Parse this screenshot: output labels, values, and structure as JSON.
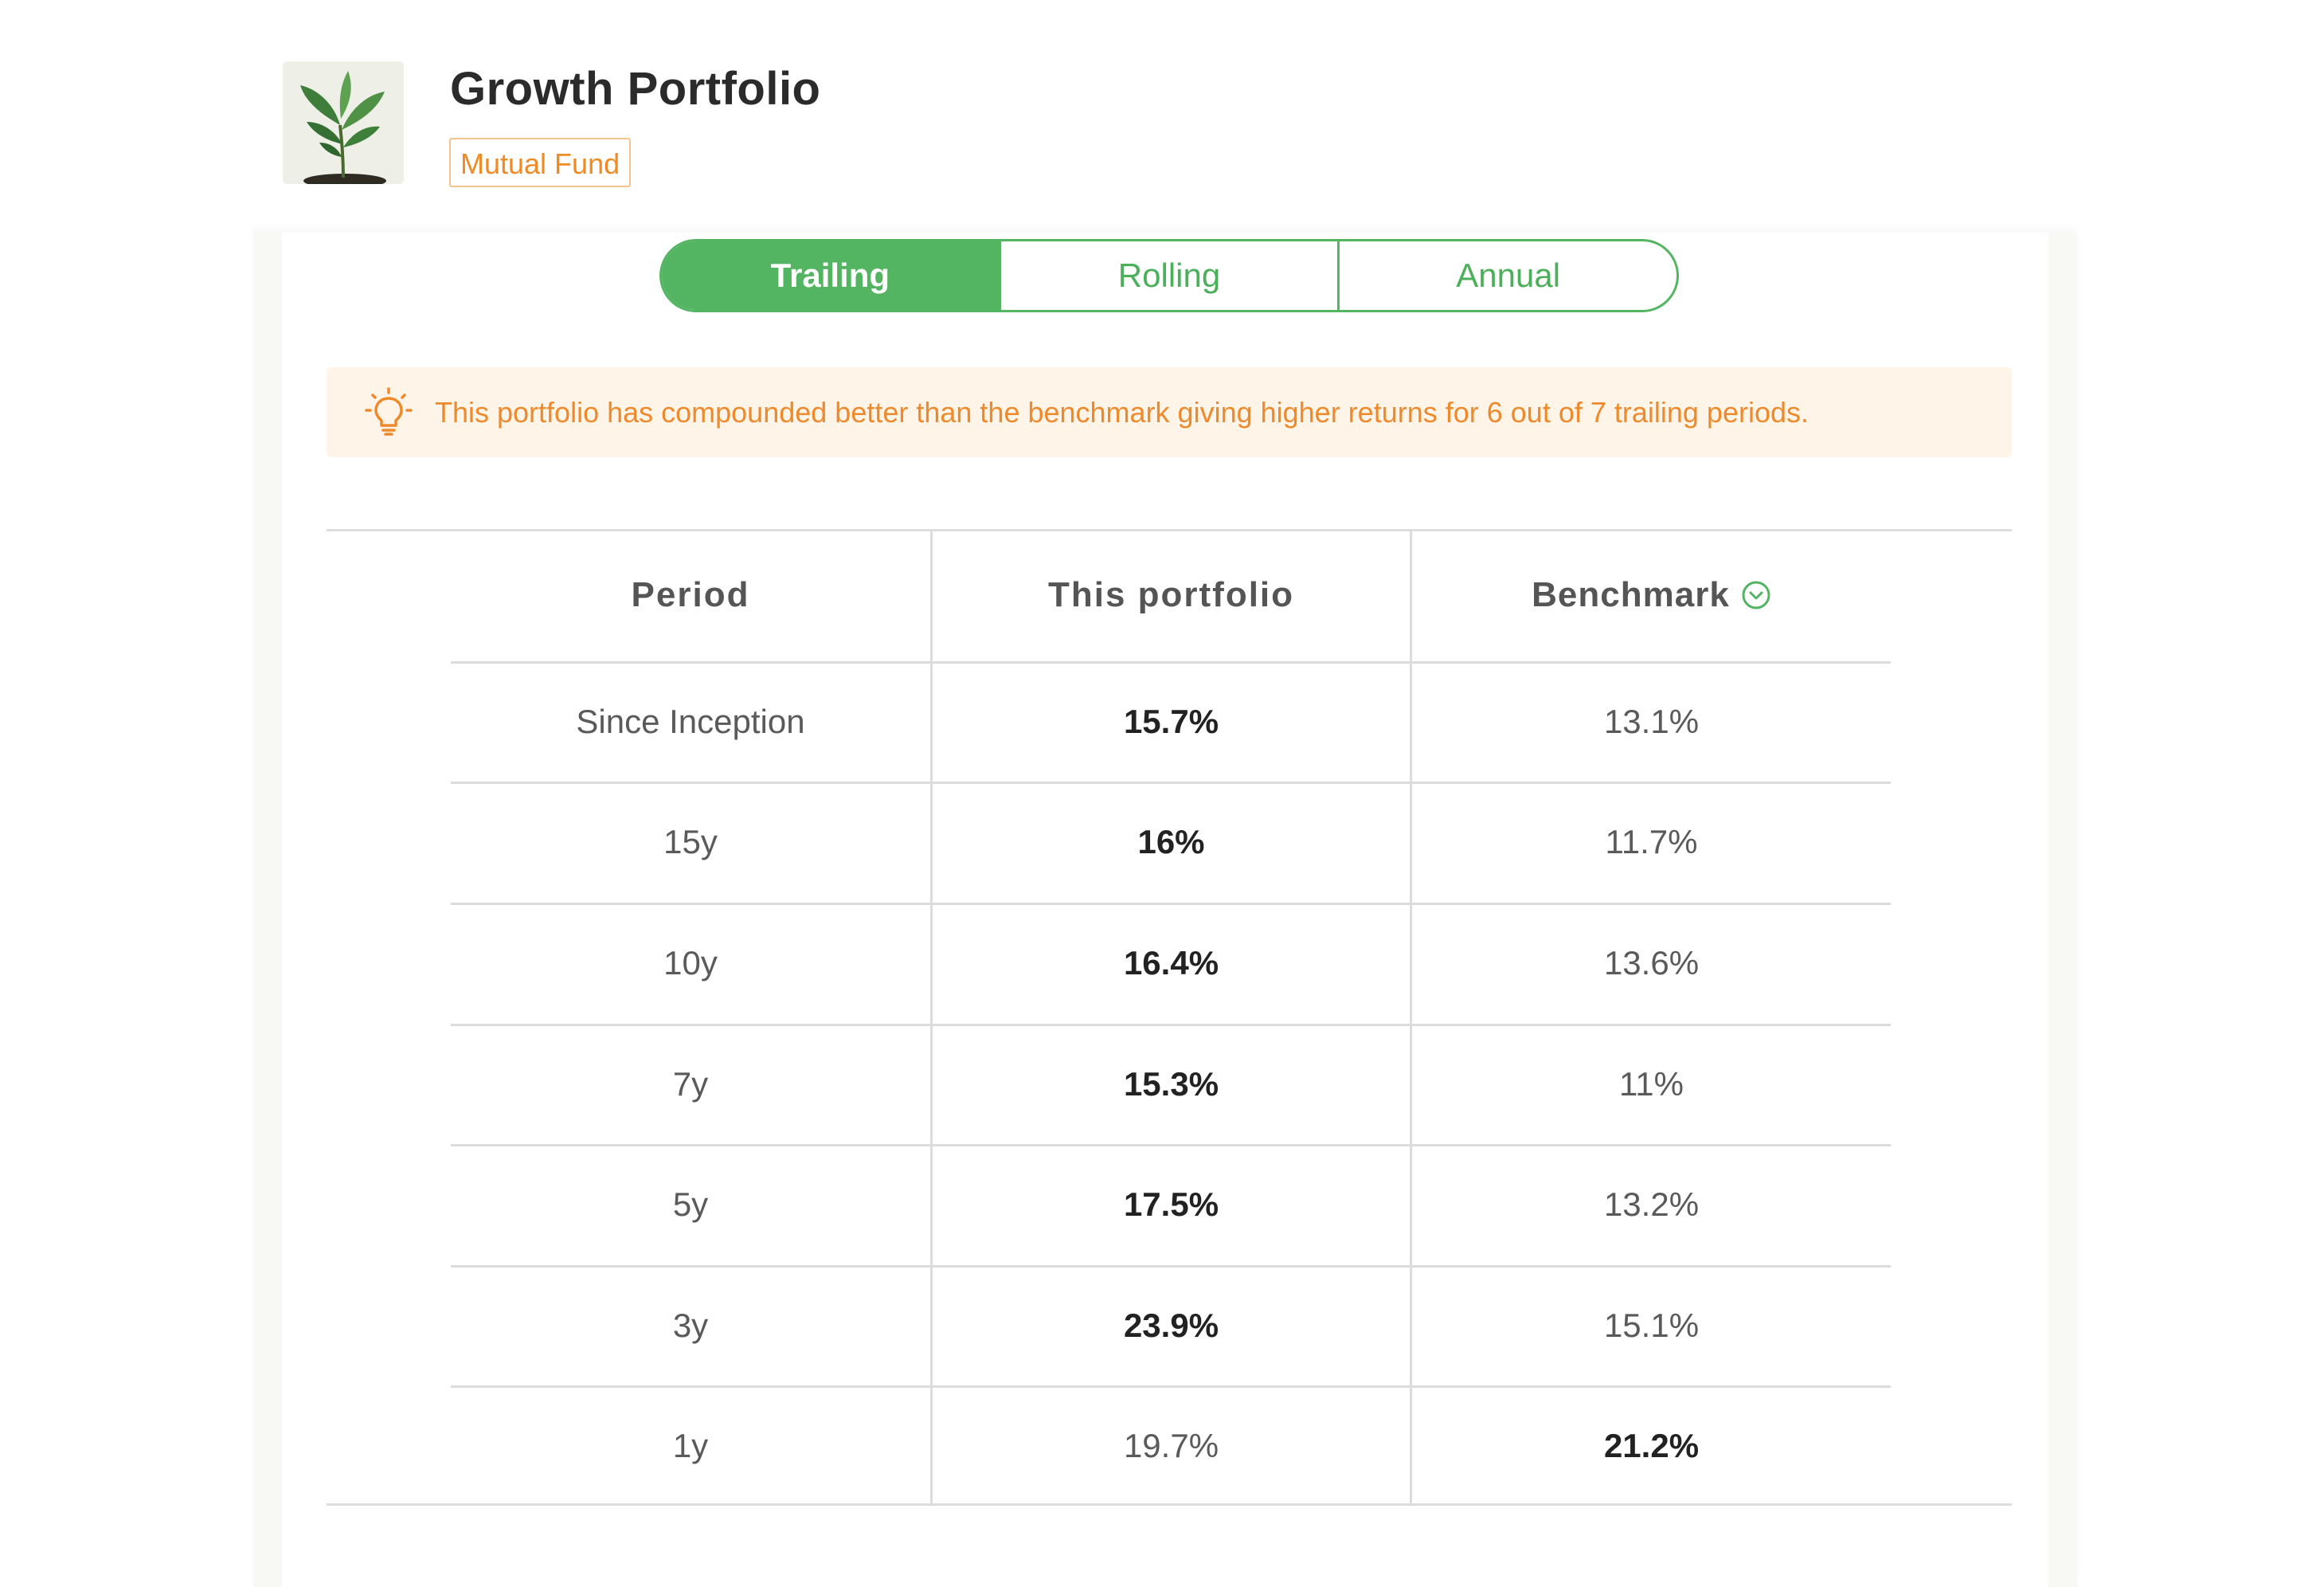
{
  "header": {
    "title": "Growth Portfolio",
    "badge": "Mutual Fund",
    "logo_icon": "plant-sapling-icon"
  },
  "tabs": [
    {
      "label": "Trailing",
      "active": true
    },
    {
      "label": "Rolling",
      "active": false
    },
    {
      "label": "Annual",
      "active": false
    }
  ],
  "insight": {
    "icon": "lightbulb-icon",
    "text": "This portfolio has compounded better than the benchmark giving higher returns for 6 out of 7 trailing periods."
  },
  "table": {
    "columns": [
      "Period",
      "This portfolio",
      "Benchmark"
    ],
    "benchmark_icon": "chevron-down-circle-icon",
    "rows": [
      {
        "period": "Since Inception",
        "portfolio": "15.7%",
        "benchmark": "13.1%",
        "winner": "portfolio"
      },
      {
        "period": "15y",
        "portfolio": "16%",
        "benchmark": "11.7%",
        "winner": "portfolio"
      },
      {
        "period": "10y",
        "portfolio": "16.4%",
        "benchmark": "13.6%",
        "winner": "portfolio"
      },
      {
        "period": "7y",
        "portfolio": "15.3%",
        "benchmark": "11%",
        "winner": "portfolio"
      },
      {
        "period": "5y",
        "portfolio": "17.5%",
        "benchmark": "13.2%",
        "winner": "portfolio"
      },
      {
        "period": "3y",
        "portfolio": "23.9%",
        "benchmark": "15.1%",
        "winner": "portfolio"
      },
      {
        "period": "1y",
        "portfolio": "19.7%",
        "benchmark": "21.2%",
        "winner": "benchmark"
      }
    ]
  },
  "colors": {
    "accent_green": "#53b461",
    "badge_orange": "#f08a24",
    "insight_bg": "#fef5e8"
  }
}
